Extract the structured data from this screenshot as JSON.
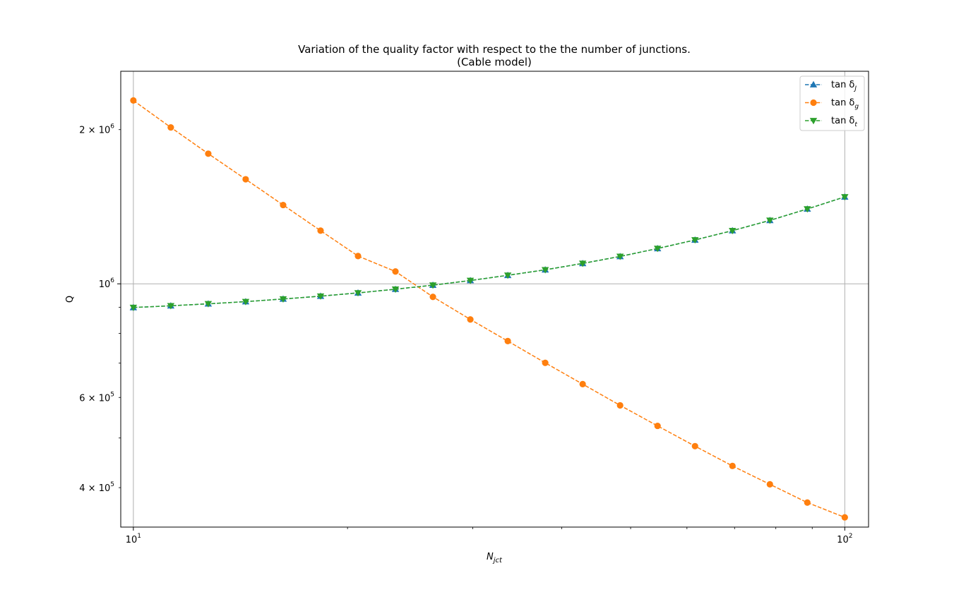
{
  "chart_data": {
    "type": "line",
    "title": "Variation of the quality factor with respect to the the number of junctions.",
    "subtitle": "(Cable model)",
    "xlabel": {
      "base": "N",
      "sub": "jct"
    },
    "ylabel": "Q",
    "xscale": "log",
    "yscale": "log",
    "xlim": [
      9.6,
      108
    ],
    "ylim": [
      335000,
      2600000
    ],
    "grid": "major",
    "legend_loc": "upper right",
    "x_major_ticks": [
      {
        "value": 10,
        "base": "10",
        "exp": "1"
      },
      {
        "value": 100,
        "base": "10",
        "exp": "2"
      }
    ],
    "y_major_ticks": [
      {
        "value": 1000000,
        "mant": "",
        "base": "10",
        "exp": "6"
      }
    ],
    "y_minor_labeled_ticks": [
      {
        "value": 400000,
        "mant": "4 × ",
        "base": "10",
        "exp": "5"
      },
      {
        "value": 600000,
        "mant": "6 × ",
        "base": "10",
        "exp": "5"
      },
      {
        "value": 2000000,
        "mant": "2 × ",
        "base": "10",
        "exp": "6"
      }
    ],
    "x": [
      10,
      11.288,
      12.743,
      14.384,
      16.238,
      18.33,
      20.691,
      23.357,
      26.367,
      29.764,
      33.598,
      37.927,
      42.813,
      48.329,
      54.556,
      61.585,
      69.519,
      78.476,
      88.587,
      100
    ],
    "series": [
      {
        "name": "tan δ",
        "name_sub": "J",
        "color": "#1f77b4",
        "marker": "triangle-up",
        "values": [
          899000,
          906000,
          914000,
          923000,
          934000,
          946000,
          960000,
          976000,
          994000,
          1015000,
          1039000,
          1065000,
          1096000,
          1131000,
          1172000,
          1218000,
          1270000,
          1330000,
          1400000,
          1478000
        ]
      },
      {
        "name": "tan δ",
        "name_sub": "g",
        "color": "#ff7f0e",
        "marker": "circle",
        "values": [
          2280000,
          2020000,
          1795000,
          1600000,
          1425000,
          1270000,
          1133000,
          1057000,
          943000,
          852000,
          773000,
          701000,
          637000,
          579000,
          528000,
          482000,
          441000,
          406000,
          374000,
          350000
        ]
      },
      {
        "name": "tan δ",
        "name_sub": "t",
        "color": "#2ca02c",
        "marker": "triangle-down",
        "values": [
          899000,
          906000,
          914000,
          923000,
          934000,
          946000,
          960000,
          976000,
          994000,
          1015000,
          1039000,
          1065000,
          1096000,
          1131000,
          1172000,
          1218000,
          1270000,
          1330000,
          1400000,
          1478000
        ]
      }
    ]
  }
}
